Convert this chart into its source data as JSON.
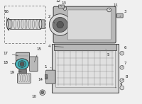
{
  "bg_color": "#f0f0f0",
  "part_gray": "#b8b8b8",
  "part_light": "#d8d8d8",
  "part_dark": "#787878",
  "part_darker": "#585858",
  "highlight_blue": "#4ab8c0",
  "line_color": "#333333",
  "label_color": "#111111",
  "dash_color": "#888888"
}
